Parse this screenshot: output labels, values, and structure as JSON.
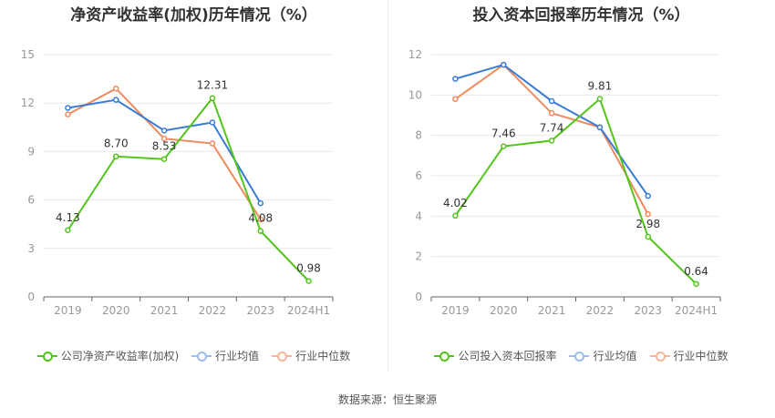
{
  "source": "数据来源：恒生聚源",
  "colors": {
    "company": "#52c41a",
    "avg": "#3a7bd5",
    "median": "#f08a5d",
    "grid": "#e8e8e8",
    "axis": "#999999"
  },
  "chart_data": [
    {
      "type": "line",
      "title": "净资产收益率(加权)历年情况（%）",
      "categories": [
        "2019",
        "2020",
        "2021",
        "2022",
        "2023",
        "2024H1"
      ],
      "ylim": [
        0,
        15
      ],
      "yticks": [
        "0",
        "3",
        "6",
        "9",
        "12",
        "15"
      ],
      "legend": "bottom",
      "series": [
        {
          "name": "公司净资产收益率(加权)",
          "values": [
            4.13,
            8.7,
            8.53,
            12.31,
            4.08,
            0.98
          ],
          "labels": [
            "4.13",
            "8.70",
            "8.53",
            "12.31",
            "4.08",
            "0.98"
          ]
        },
        {
          "name": "行业均值",
          "values": [
            11.7,
            12.2,
            10.3,
            10.8,
            5.8,
            null
          ]
        },
        {
          "name": "行业中位数",
          "values": [
            11.3,
            12.9,
            9.8,
            9.5,
            4.8,
            null
          ]
        }
      ]
    },
    {
      "type": "line",
      "title": "投入资本回报率历年情况（%）",
      "categories": [
        "2019",
        "2020",
        "2021",
        "2022",
        "2023",
        "2024H1"
      ],
      "ylim": [
        0,
        12
      ],
      "yticks": [
        "0",
        "2",
        "4",
        "6",
        "8",
        "10",
        "12"
      ],
      "legend": "bottom",
      "series": [
        {
          "name": "公司投入资本回报率",
          "values": [
            4.02,
            7.46,
            7.74,
            9.81,
            2.98,
            0.64
          ],
          "labels": [
            "4.02",
            "7.46",
            "7.74",
            "9.81",
            "2.98",
            "0.64"
          ]
        },
        {
          "name": "行业均值",
          "values": [
            10.8,
            11.5,
            9.7,
            8.4,
            5.0,
            null
          ]
        },
        {
          "name": "行业中位数",
          "values": [
            9.8,
            11.5,
            9.1,
            8.4,
            4.1,
            null
          ]
        }
      ]
    }
  ]
}
